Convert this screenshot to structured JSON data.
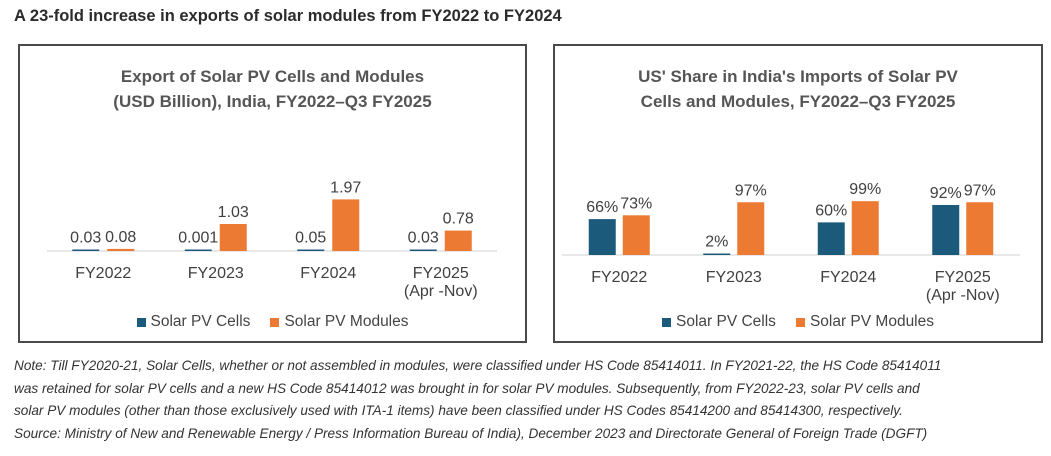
{
  "headline": "A 23-fold increase in exports of solar modules from FY2022 to FY2024",
  "colors": {
    "cells": "#1c5a7b",
    "modules": "#ec7a32",
    "axis": "#d0d0d0"
  },
  "chart_data": [
    {
      "type": "bar",
      "title_lines": [
        "Export of Solar PV Cells and Modules",
        "(USD Billion), India, FY2022–Q3 FY2025"
      ],
      "categories": [
        [
          "FY2022"
        ],
        [
          "FY2023"
        ],
        [
          "FY2024"
        ],
        [
          "FY2025",
          "(Apr -Nov)"
        ]
      ],
      "series": [
        {
          "name": "Solar PV Cells",
          "values": [
            0.03,
            0.001,
            0.05,
            0.03
          ],
          "labels": [
            "0.03",
            "0.001",
            "0.05",
            "0.03"
          ]
        },
        {
          "name": "Solar PV Modules",
          "values": [
            0.08,
            1.03,
            1.97,
            0.78
          ],
          "labels": [
            "0.08",
            "1.03",
            "1.97",
            "0.78"
          ]
        }
      ],
      "ylim": [
        0,
        2.1
      ],
      "legend": "bottom"
    },
    {
      "type": "bar",
      "title_lines": [
        "US' Share in India's Imports of Solar PV",
        "Cells and Modules, FY2022–Q3 FY2025"
      ],
      "categories": [
        [
          "FY2022"
        ],
        [
          "FY2023"
        ],
        [
          "FY2024"
        ],
        [
          "FY2025",
          "(Apr -Nov)"
        ]
      ],
      "series": [
        {
          "name": "Solar PV Cells",
          "values": [
            66,
            2,
            60,
            92
          ],
          "labels": [
            "66%",
            "2%",
            "60%",
            "92%"
          ]
        },
        {
          "name": "Solar PV Modules",
          "values": [
            73,
            97,
            99,
            97
          ],
          "labels": [
            "73%",
            "97%",
            "99%",
            "97%"
          ]
        }
      ],
      "ylim": [
        0,
        103
      ],
      "legend": "bottom"
    }
  ],
  "note_lines": [
    "Note: Till FY2020-21, Solar Cells, whether or not assembled in modules, were classified under HS Code 85414011. In FY2021-22, the HS Code 85414011",
    "was retained for solar PV cells and a new HS Code 85414012 was brought in for solar PV modules. Subsequently, from FY2022-23, solar PV cells and",
    "solar PV modules (other than those exclusively used with ITA-1 items) have been classified under HS Codes 85414200 and 85414300, respectively.",
    "Source: Ministry of New and Renewable Energy / Press Information Bureau of India), December 2023 and Directorate General of Foreign Trade (DGFT)"
  ]
}
